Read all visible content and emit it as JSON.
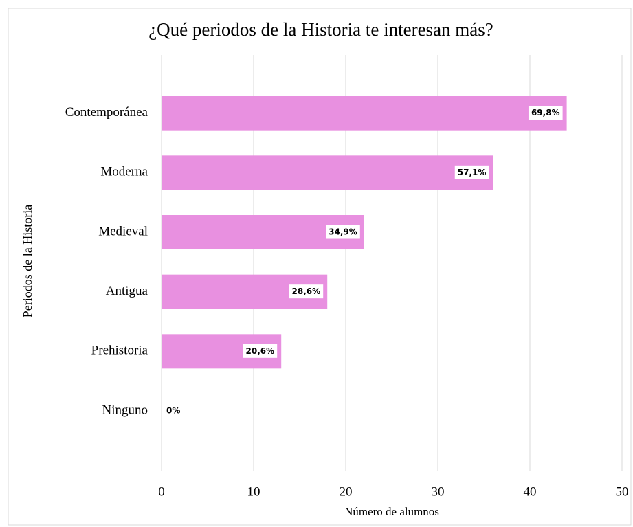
{
  "chart_data": {
    "type": "bar",
    "orientation": "horizontal",
    "title": "¿Qué periodos de la Historia te interesan más?",
    "x_label": "Número de alumnos",
    "y_label": "Periodos de la Historia",
    "categories": [
      "Contemporánea",
      "Moderna",
      "Medieval",
      "Antigua",
      "Prehistoria",
      "Ninguno"
    ],
    "values": [
      44,
      36,
      22,
      18,
      13,
      0
    ],
    "percent_labels": [
      "69,8%",
      "57,1%",
      "34,9%",
      "28,6%",
      "20,6%",
      "0%"
    ],
    "color": "#e890e0",
    "xlim": [
      0,
      50
    ],
    "xticks": [
      0,
      10,
      20,
      30,
      40,
      50
    ],
    "grid": true
  }
}
